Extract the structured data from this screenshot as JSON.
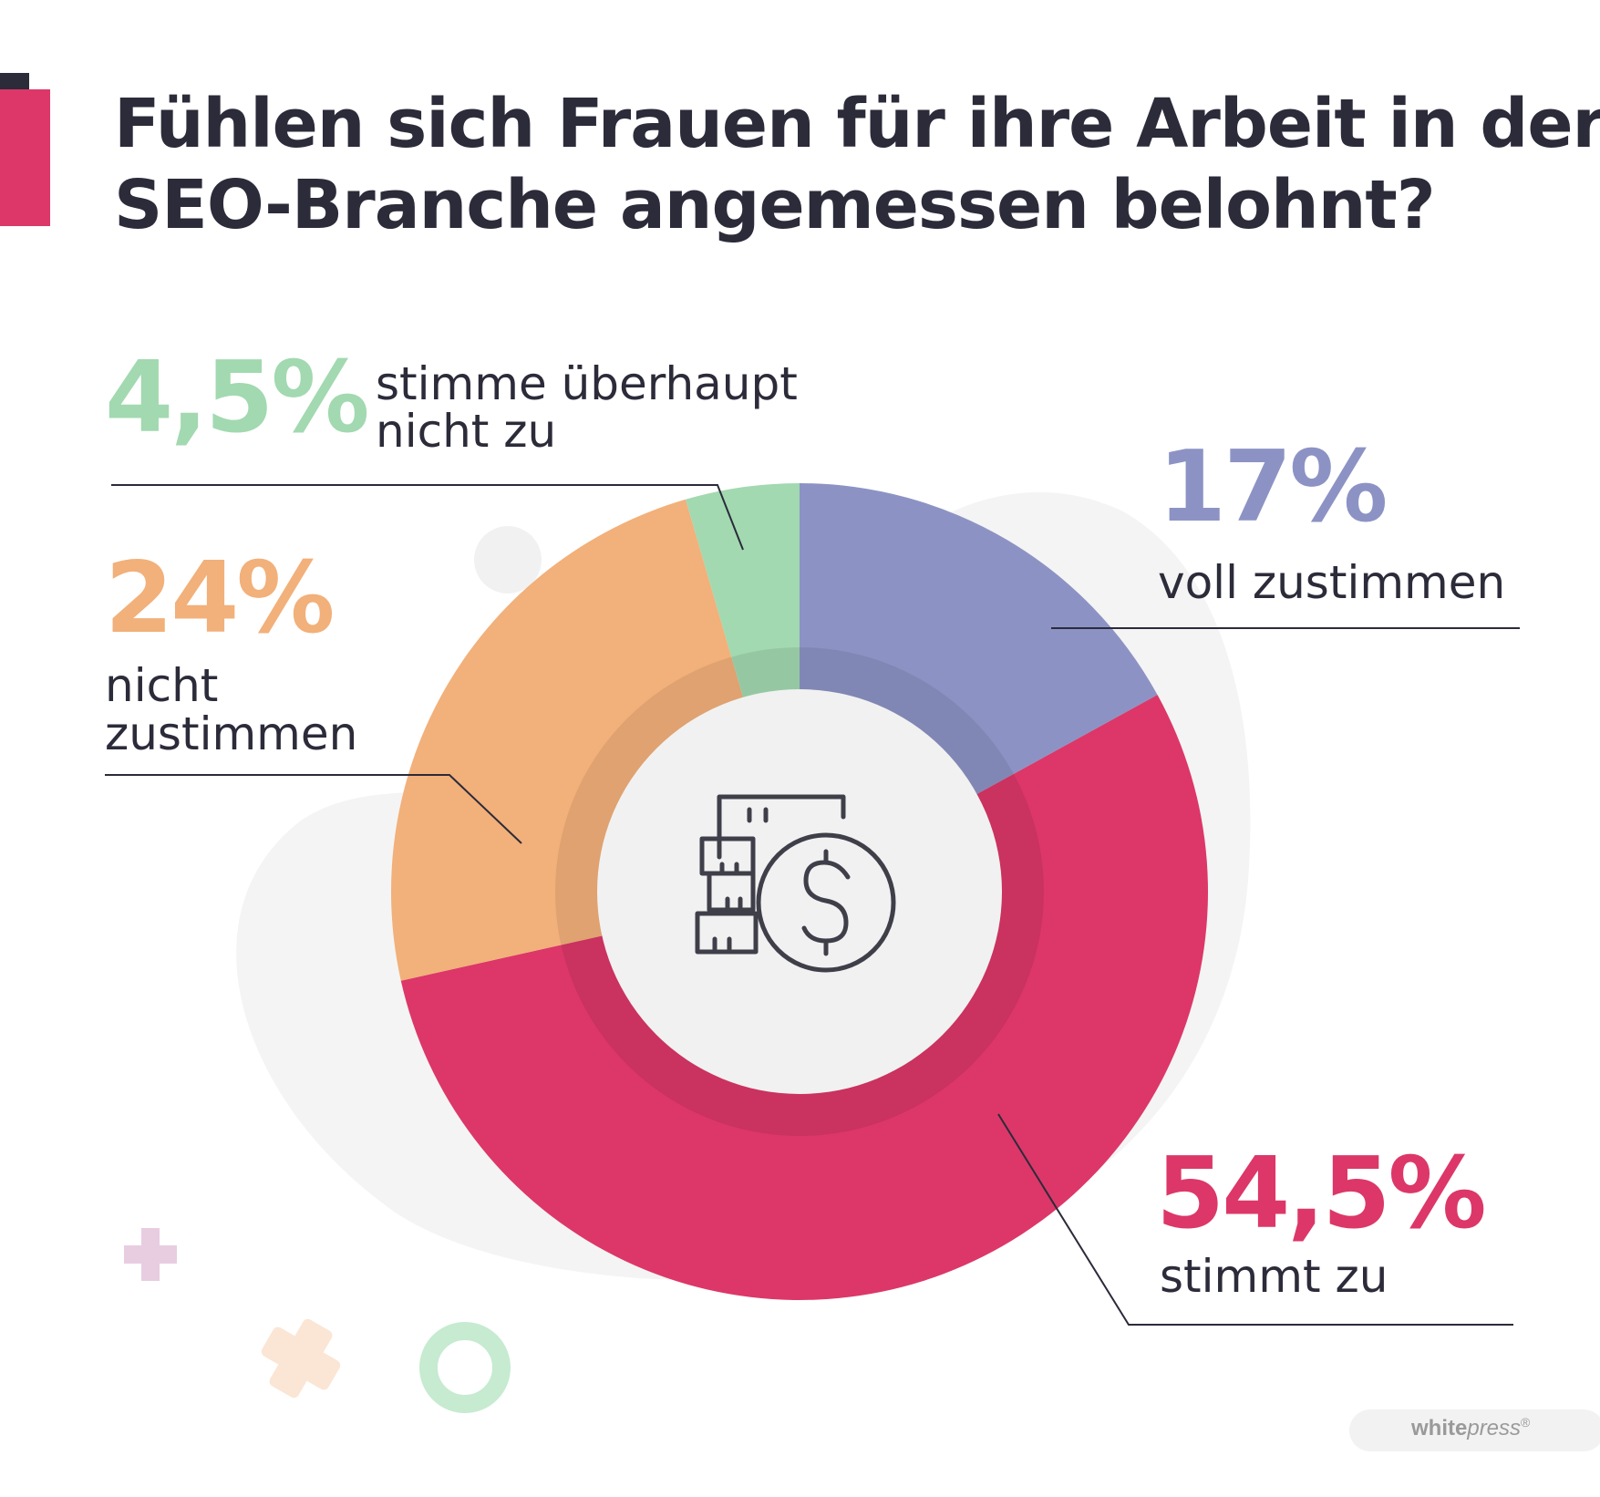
{
  "title": {
    "line1": "Fühlen sich Frauen für ihre Arbeit in der",
    "line2": "SEO-Branche angemessen belohnt?"
  },
  "chart_data": {
    "type": "pie",
    "style": "donut",
    "title": "Fühlen sich Frauen für ihre Arbeit in der SEO-Branche angemessen belohnt?",
    "unit": "%",
    "slices": [
      {
        "label": "voll zustimmen",
        "value": 17,
        "display": "17%",
        "color": "#8c93c4"
      },
      {
        "label": "stimmt zu",
        "value": 54.5,
        "display": "54,5%",
        "color": "#dc3768"
      },
      {
        "label": "nicht zustimmen",
        "value": 24,
        "display": "24%",
        "color": "#f2b07a"
      },
      {
        "label": "stimme überhaupt nicht zu",
        "value": 4.5,
        "display": "4,5%",
        "color": "#a2d9b0"
      }
    ]
  },
  "annotations": {
    "s1": {
      "pct": "4,5%",
      "line1": "stimme überhaupt",
      "line2": "nicht zu"
    },
    "s2": {
      "pct": "24%",
      "line1": "nicht",
      "line2": "zustimmen"
    },
    "s3": {
      "pct": "17%",
      "line1": "voll zustimmen"
    },
    "s4": {
      "pct": "54,5%",
      "line1": "stimmt zu"
    }
  },
  "center_icon": "money-coins-icon",
  "decorations": [
    "plus-icon",
    "cross-icon",
    "ring-icon"
  ],
  "logo": {
    "bold": "white",
    "italic": "press",
    "mark": "®"
  }
}
